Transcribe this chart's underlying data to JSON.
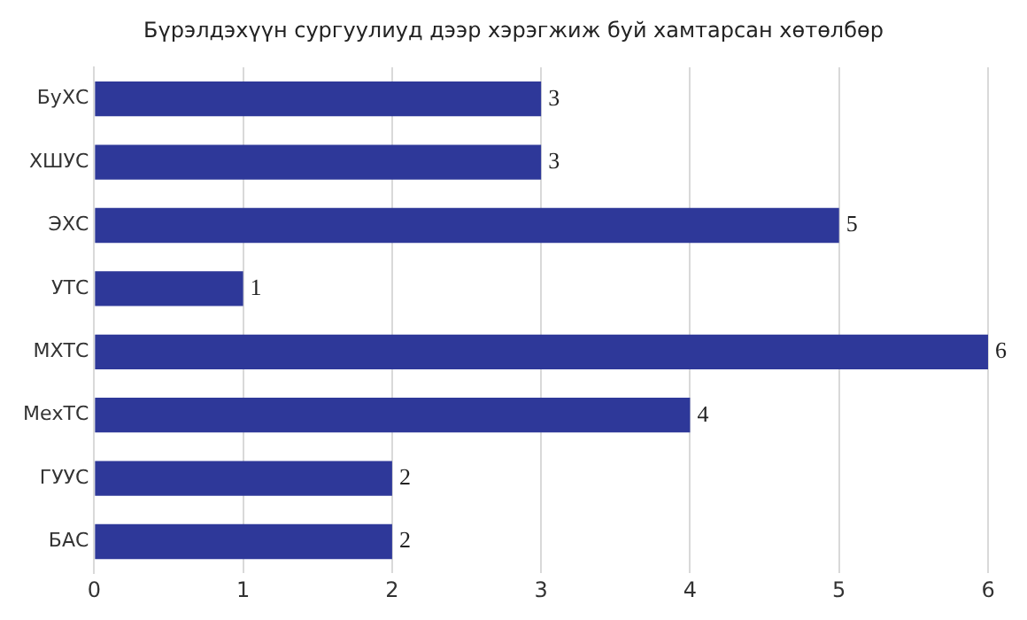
{
  "chart_data": {
    "type": "bar",
    "orientation": "horizontal",
    "title": "Бүрэлдэхүүн сургуулиуд дээр хэрэгжиж буй хамтарсан хөтөлбөр",
    "categories": [
      "БуХС",
      "ХШУС",
      "ЭХС",
      "УТС",
      "МХТС",
      "МехТС",
      "ГУУС",
      "БАС"
    ],
    "values": [
      3,
      3,
      5,
      1,
      6,
      4,
      2,
      2
    ],
    "color": "#2e3899",
    "xlim": [
      0,
      6
    ],
    "xticks": [
      0,
      1,
      2,
      3,
      4,
      5,
      6
    ],
    "grid": "x",
    "legend": false,
    "data_labels": true
  }
}
